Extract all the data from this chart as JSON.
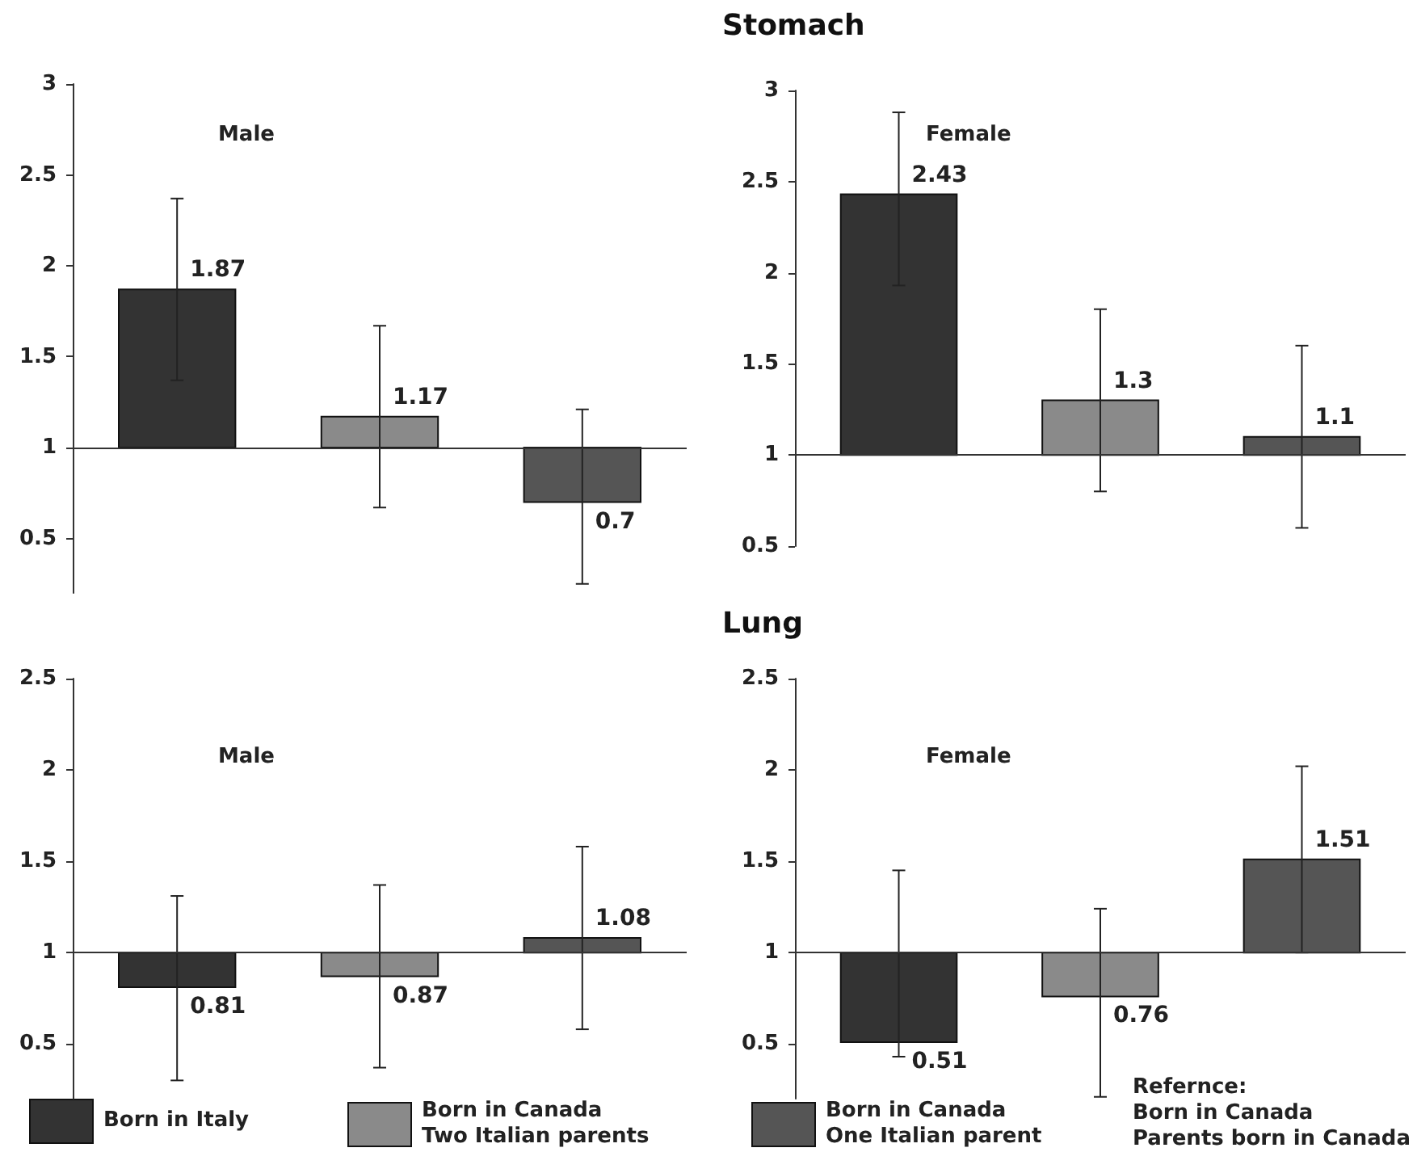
{
  "chart_data": [
    {
      "type": "bar",
      "subtitle": "Male",
      "categories": [
        null
      ],
      "ylim": [
        0.2,
        3
      ],
      "yticks": [
        0.5,
        1,
        1.5,
        2,
        2.5,
        3
      ],
      "ref_lines": [
        {
          "axis": "y",
          "value": 1
        }
      ],
      "legend": "bottom",
      "series": [
        {
          "name": "Born in Italy",
          "color": "#333333",
          "base": [
            1
          ],
          "values": [
            0.87
          ],
          "errors": [
            [
              1.37,
              2.37
            ]
          ],
          "value_labels": [
            "1.87"
          ]
        },
        {
          "name": "Born in Canada\nTwo Italian parents",
          "color": "#8a8a8a",
          "base": [
            1
          ],
          "values": [
            0.17
          ],
          "errors": [
            [
              0.67,
              1.67
            ]
          ],
          "value_labels": [
            "1.17"
          ]
        },
        {
          "name": "Born in Canada\nOne Italian parent",
          "color": "#555555",
          "base": [
            1
          ],
          "values": [
            -0.3
          ],
          "errors": [
            [
              0.25,
              1.21
            ]
          ],
          "value_labels": [
            "0.7"
          ]
        }
      ]
    },
    {
      "type": "bar",
      "title": "Stomach",
      "subtitle": "Female",
      "categories": [
        null
      ],
      "ylim": [
        0.5,
        3
      ],
      "yticks": [
        0.5,
        1,
        1.5,
        2,
        2.5,
        3
      ],
      "ref_lines": [
        {
          "axis": "y",
          "value": 1
        }
      ],
      "series": [
        {
          "color": "#333333",
          "base": [
            1
          ],
          "values": [
            1.43
          ],
          "errors": [
            [
              1.93,
              2.88
            ]
          ],
          "value_labels": [
            "2.43"
          ]
        },
        {
          "color": "#8a8a8a",
          "base": [
            1
          ],
          "values": [
            0.3
          ],
          "errors": [
            [
              0.8,
              1.8
            ]
          ],
          "value_labels": [
            "1.3"
          ]
        },
        {
          "color": "#555555",
          "base": [
            1
          ],
          "values": [
            0.1
          ],
          "errors": [
            [
              0.6,
              1.6
            ]
          ],
          "value_labels": [
            "1.1"
          ]
        }
      ]
    },
    {
      "type": "bar",
      "subtitle": "Male",
      "categories": [
        null
      ],
      "ylim": [
        0.2,
        2.5
      ],
      "yticks": [
        0.5,
        1,
        1.5,
        2,
        2.5
      ],
      "ref_lines": [
        {
          "axis": "y",
          "value": 1
        }
      ],
      "series": [
        {
          "color": "#333333",
          "base": [
            1
          ],
          "values": [
            -0.19
          ],
          "errors": [
            [
              0.3,
              1.31
            ]
          ],
          "value_labels": [
            "0.81"
          ]
        },
        {
          "color": "#8a8a8a",
          "base": [
            1
          ],
          "values": [
            -0.13
          ],
          "errors": [
            [
              0.37,
              1.37
            ]
          ],
          "value_labels": [
            "0.87"
          ]
        },
        {
          "color": "#555555",
          "base": [
            1
          ],
          "values": [
            0.08
          ],
          "errors": [
            [
              0.58,
              1.58
            ]
          ],
          "value_labels": [
            "1.08"
          ]
        }
      ]
    },
    {
      "type": "bar",
      "title": "Lung",
      "subtitle": "Female",
      "categories": [
        null
      ],
      "ylim": [
        0.2,
        2.5
      ],
      "yticks": [
        0.5,
        1,
        1.5,
        2,
        2.5
      ],
      "ref_lines": [
        {
          "axis": "y",
          "value": 1
        }
      ],
      "annotations": [
        "Refernce:\nBorn in Canada\nParents born in Canada"
      ],
      "series": [
        {
          "color": "#333333",
          "base": [
            1
          ],
          "values": [
            -0.49
          ],
          "errors": [
            [
              0.43,
              1.45
            ]
          ],
          "value_labels": [
            "0.51"
          ]
        },
        {
          "color": "#8a8a8a",
          "base": [
            1
          ],
          "values": [
            -0.24
          ],
          "errors": [
            [
              0.21,
              1.24
            ]
          ],
          "value_labels": [
            "0.76"
          ]
        },
        {
          "color": "#555555",
          "base": [
            1
          ],
          "values": [
            0.51
          ],
          "errors": [
            [
              1.0,
              2.02
            ]
          ],
          "value_labels": [
            "1.51"
          ]
        }
      ]
    }
  ]
}
